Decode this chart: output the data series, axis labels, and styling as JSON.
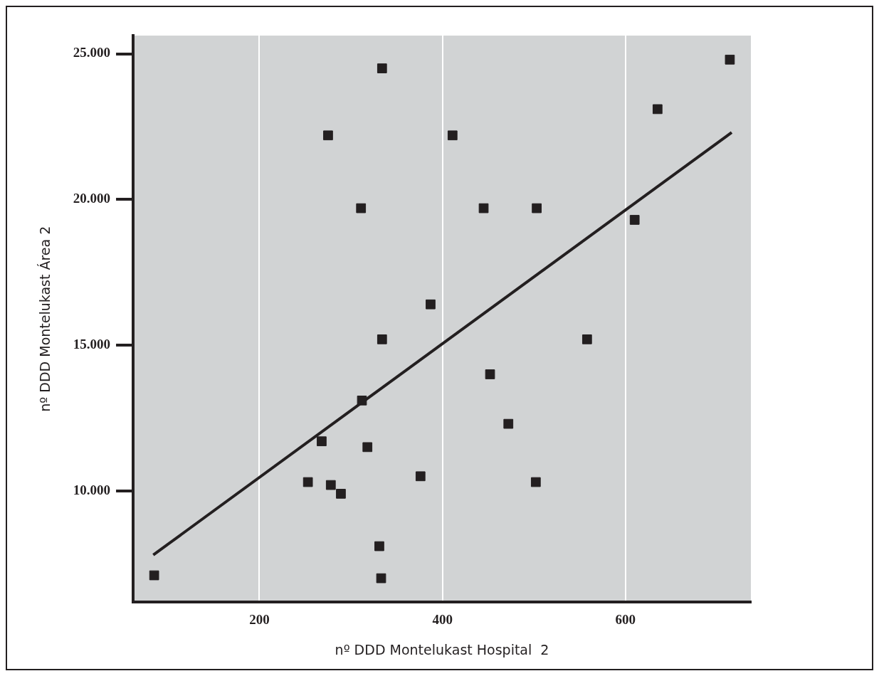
{
  "chart_data": {
    "type": "scatter",
    "xlabel": "nº DDD Montelukast Hospital  2",
    "ylabel": "nº DDD Montelukast Área 2",
    "xlim": [
      62,
      737
    ],
    "ylim": [
      6175,
      25625
    ],
    "xticks": [
      200,
      400,
      600
    ],
    "yticks": [
      {
        "value": 10000,
        "label": "10.000"
      },
      {
        "value": 15000,
        "label": "15.000"
      },
      {
        "value": 20000,
        "label": "20.000"
      },
      {
        "value": 25000,
        "label": "25.000"
      }
    ],
    "grid": "x",
    "legend": false,
    "series": [
      {
        "color": "#231f20",
        "marker": "square",
        "x": [
          85,
          275,
          334,
          311,
          411,
          445,
          503,
          635,
          714,
          610,
          387,
          334,
          558,
          452,
          312,
          472,
          268,
          318,
          253,
          278,
          289,
          376,
          502,
          331,
          333
        ],
        "values": [
          7100,
          22200,
          24500,
          19700,
          22200,
          19700,
          19700,
          23100,
          24800,
          19300,
          16400,
          15200,
          15200,
          14000,
          13100,
          12300,
          11700,
          11500,
          10300,
          10200,
          9900,
          10500,
          10300,
          8100,
          7000
        ]
      },
      {
        "type": "line",
        "color": "#231f20",
        "marker": "none",
        "line_style": "solid",
        "x": [
          84,
          716
        ],
        "values": [
          7800,
          22300
        ]
      }
    ]
  }
}
